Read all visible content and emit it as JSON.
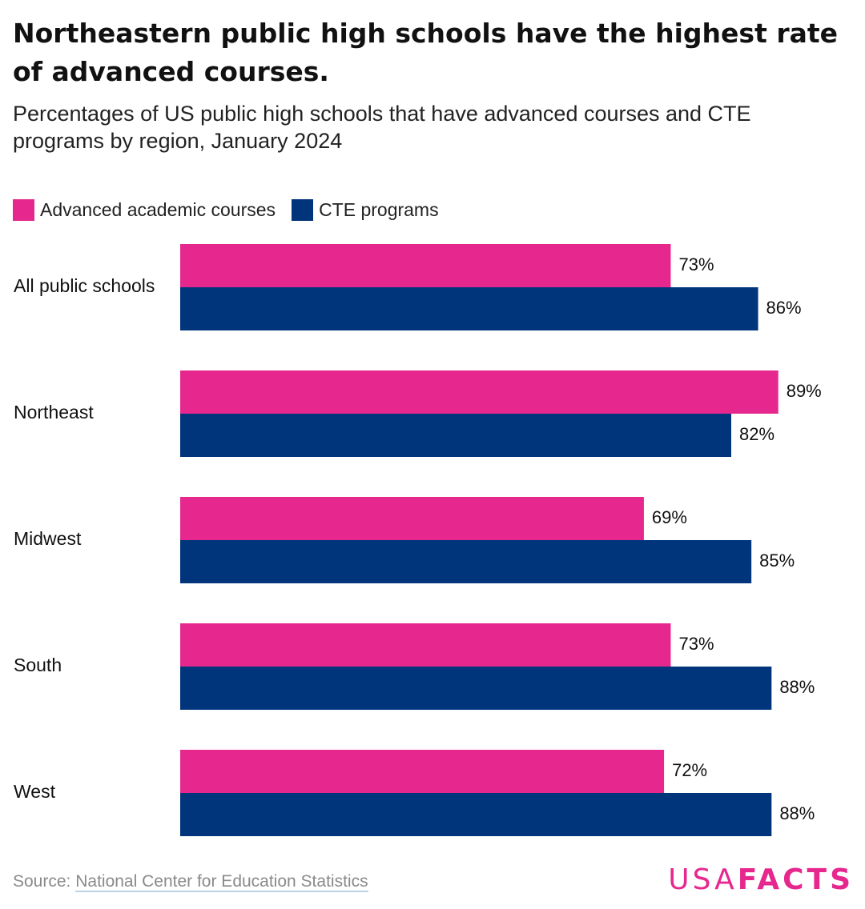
{
  "chart_data": {
    "type": "bar",
    "orientation": "horizontal",
    "title": "Northeastern public high schools have the highest rate of advanced courses.",
    "subtitle": "Percentages of US public high schools that have advanced courses and CTE programs by region, January 2024",
    "categories": [
      "All public schools",
      "Northeast",
      "Midwest",
      "South",
      "West"
    ],
    "series": [
      {
        "name": "Advanced academic courses",
        "color": "#e6288e",
        "values": [
          73,
          89,
          69,
          73,
          72
        ],
        "labels": [
          "73%",
          "89%",
          "69%",
          "73%",
          "72%"
        ]
      },
      {
        "name": "CTE programs",
        "color": "#00357b",
        "values": [
          86,
          82,
          85,
          88,
          88
        ],
        "labels": [
          "86%",
          "82%",
          "85%",
          "88%",
          "88%"
        ]
      }
    ],
    "xlim": [
      0,
      100
    ],
    "grid": false,
    "legend": "top-left",
    "value_unit": "%"
  },
  "source": {
    "prefix": "Source: ",
    "name": "National Center for Education Statistics"
  },
  "logo": {
    "light": "USA",
    "bold": "FACTS",
    "color": "#e6288e"
  }
}
